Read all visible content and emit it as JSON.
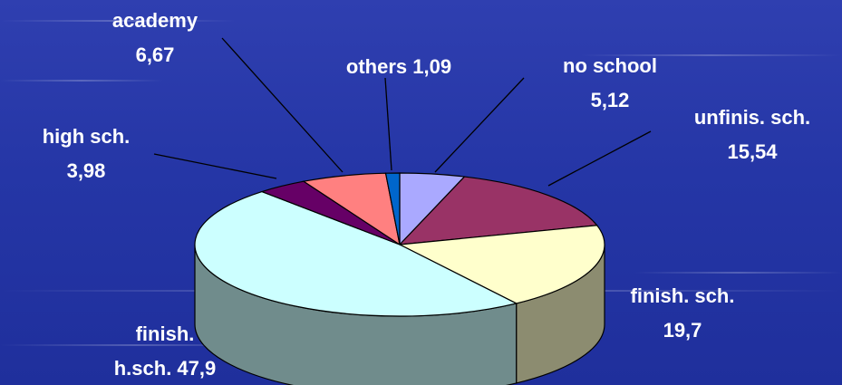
{
  "chart_data": {
    "type": "pie",
    "style": "3d",
    "legend": "none",
    "slices": [
      {
        "label_lines": [
          "no school",
          "5,12"
        ],
        "value": 5.12,
        "color": "#aaa9ff"
      },
      {
        "label_lines": [
          "unfinis. sch.",
          "15,54"
        ],
        "value": 15.54,
        "color": "#993366"
      },
      {
        "label_lines": [
          "finish. sch.",
          "19,7"
        ],
        "value": 19.7,
        "color": "#ffffcc"
      },
      {
        "label_lines": [
          "finish.",
          "h.sch. 47,9"
        ],
        "value": 47.9,
        "color": "#ccffff"
      },
      {
        "label_lines": [
          "high sch.",
          "3,98"
        ],
        "value": 3.98,
        "color": "#660066"
      },
      {
        "label_lines": [
          "academy",
          "6,67"
        ],
        "value": 6.67,
        "color": "#ff8080"
      },
      {
        "label_lines": [
          "others 1,09"
        ],
        "value": 1.09,
        "color": "#0066cc"
      }
    ]
  }
}
